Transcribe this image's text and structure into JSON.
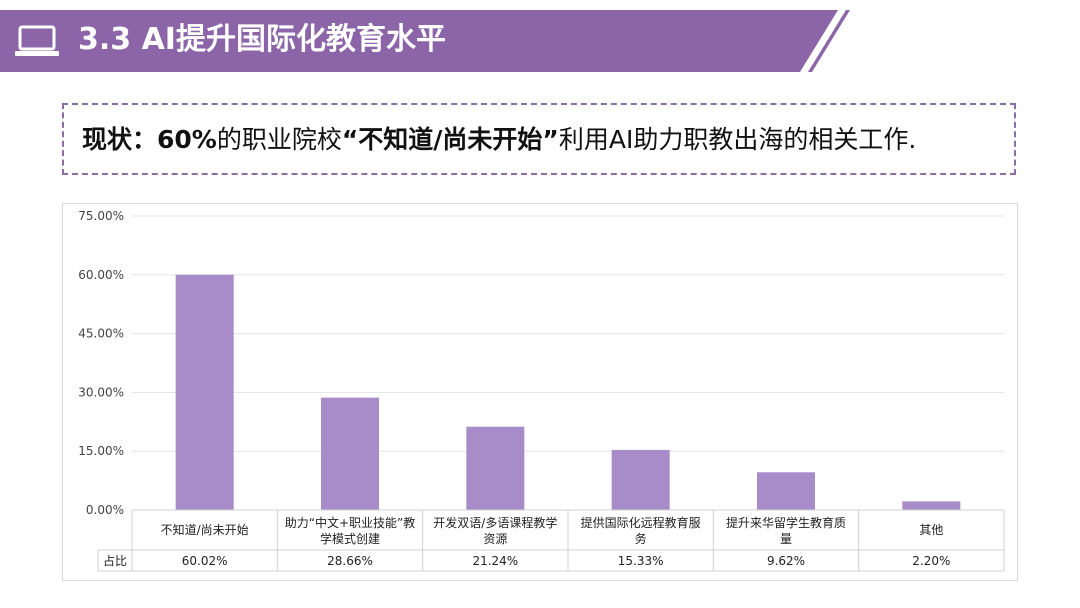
{
  "header": {
    "title": "3.3 AI提升国际化教育水平",
    "icon": "laptop-icon",
    "color": "#8c64a8"
  },
  "status": {
    "prefix": "现状：",
    "percent": "60%",
    "mid": "的职业院校",
    "quote": "“不知道/尚未开始”",
    "suffix": "利用AI助力职教出海的相关工作."
  },
  "chart_data": {
    "type": "bar",
    "categories": [
      [
        "不知道/尚未开始"
      ],
      [
        "助力“中文+职业技能”教",
        "学模式创建"
      ],
      [
        "开发双语/多语课程教学",
        "资源"
      ],
      [
        "提供国际化远程教育服",
        "务"
      ],
      [
        "提升来华留学生教育质",
        "量"
      ],
      [
        "其他"
      ]
    ],
    "series": [
      {
        "name": "占比",
        "values": [
          60.02,
          28.66,
          21.24,
          15.33,
          9.62,
          2.2
        ],
        "labels": [
          "60.02%",
          "28.66%",
          "21.24%",
          "15.33%",
          "9.62%",
          "2.20%"
        ],
        "color": "#a88bc9"
      }
    ],
    "ylim": [
      0,
      75
    ],
    "yticks": [
      "0.00%",
      "15.00%",
      "30.00%",
      "45.00%",
      "60.00%",
      "75.00%"
    ],
    "ytick_values": [
      0,
      15,
      30,
      45,
      60,
      75
    ],
    "grid": true,
    "data_table": true
  }
}
